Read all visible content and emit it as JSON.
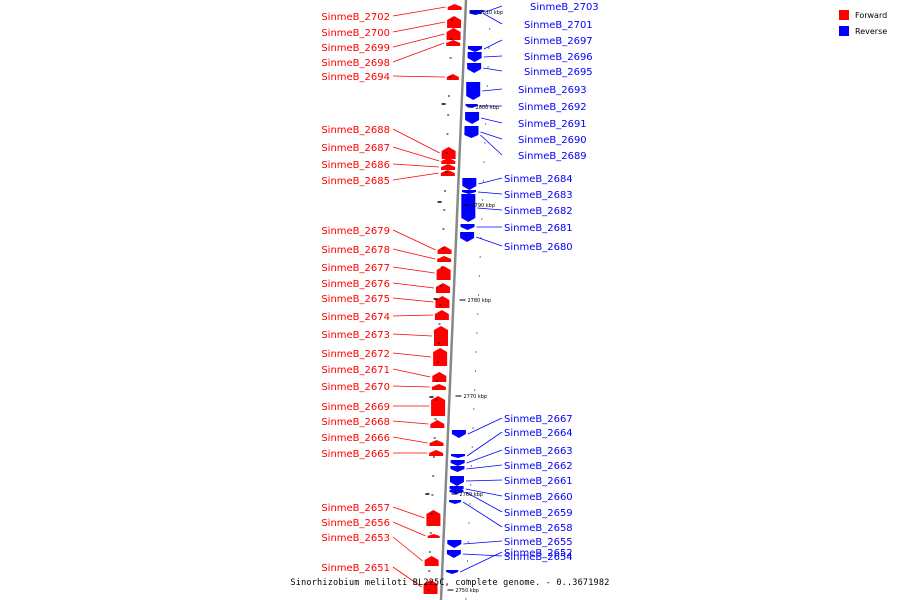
{
  "caption": "Sinorhizobium meliloti BL225C, complete genome. - 0..3671982",
  "legend": [
    {
      "label": "Forward",
      "color": "#ff0000"
    },
    {
      "label": "Reverse",
      "color": "#0000ff"
    }
  ],
  "colors": {
    "forward": "#ff0000",
    "reverse": "#0000ff",
    "backbone": "#888888"
  },
  "ticks": [
    "2810 kbp",
    "2800 kbp",
    "2790 kbp",
    "2780 kbp",
    "2770 kbp",
    "2760 kbp",
    "2750 kbp"
  ],
  "forward_genes": [
    "SinmeB_2702",
    "SinmeB_2700",
    "SinmeB_2699",
    "SinmeB_2698",
    "SinmeB_2694",
    "SinmeB_2688",
    "SinmeB_2687",
    "SinmeB_2686",
    "SinmeB_2685",
    "SinmeB_2679",
    "SinmeB_2678",
    "SinmeB_2677",
    "SinmeB_2676",
    "SinmeB_2675",
    "SinmeB_2674",
    "SinmeB_2673",
    "SinmeB_2672",
    "SinmeB_2671",
    "SinmeB_2670",
    "SinmeB_2669",
    "SinmeB_2668",
    "SinmeB_2666",
    "SinmeB_2665",
    "SinmeB_2657",
    "SinmeB_2656",
    "SinmeB_2653",
    "SinmeB_2651"
  ],
  "reverse_genes": [
    "SinmeB_2703",
    "SinmeB_2701",
    "SinmeB_2697",
    "SinmeB_2696",
    "SinmeB_2695",
    "SinmeB_2693",
    "SinmeB_2692",
    "SinmeB_2691",
    "SinmeB_2690",
    "SinmeB_2689",
    "SinmeB_2684",
    "SinmeB_2683",
    "SinmeB_2682",
    "SinmeB_2681",
    "SinmeB_2680",
    "SinmeB_2667",
    "SinmeB_2664",
    "SinmeB_2663",
    "SinmeB_2662",
    "SinmeB_2661",
    "SinmeB_2660",
    "SinmeB_2659",
    "SinmeB_2658",
    "SinmeB_2655",
    "SinmeB_2654",
    "SinmeB_2652"
  ]
}
